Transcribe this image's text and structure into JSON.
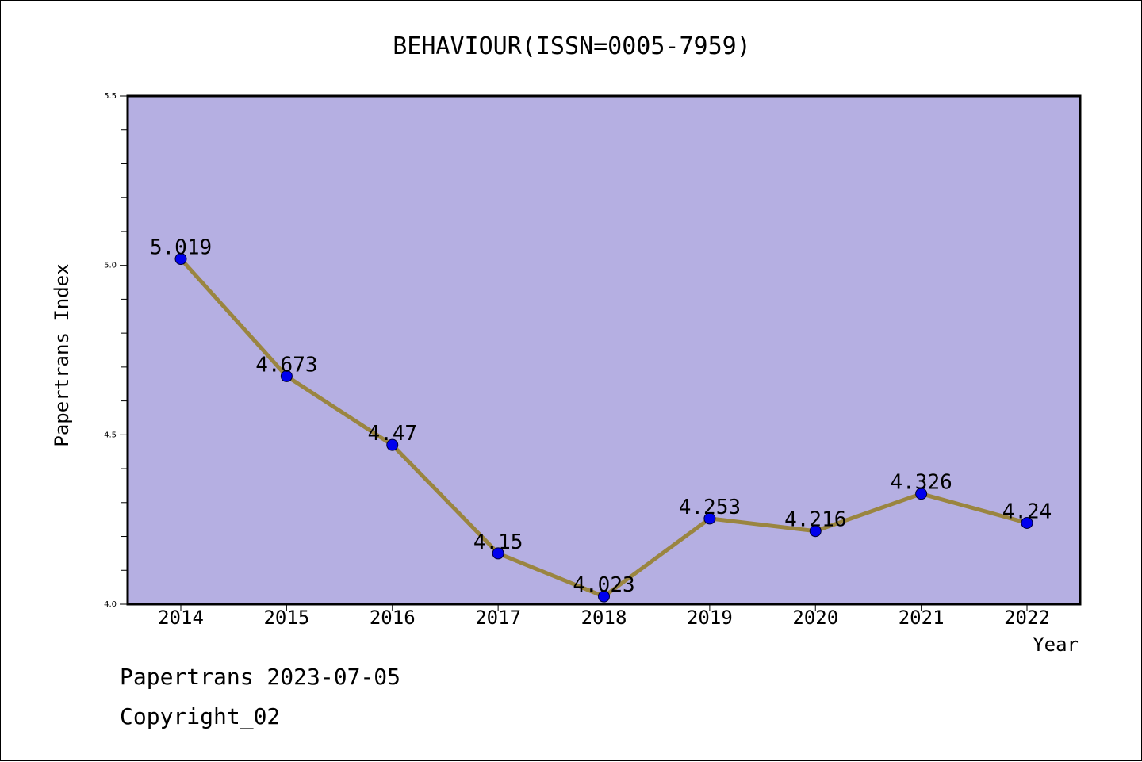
{
  "chart_data": {
    "type": "line",
    "title": "BEHAVIOUR(ISSN=0005-7959)",
    "xlabel": "Year",
    "ylabel": "Papertrans Index",
    "categories": [
      "2014",
      "2015",
      "2016",
      "2017",
      "2018",
      "2019",
      "2020",
      "2021",
      "2022"
    ],
    "series": [
      {
        "values": [
          5.019,
          4.673,
          4.47,
          4.15,
          4.023,
          4.253,
          4.216,
          4.326,
          4.24
        ],
        "labels": [
          "5.019",
          "4.673",
          "4.47",
          "4.15",
          "4.023",
          "4.253",
          "4.216",
          "4.326",
          "4.24"
        ]
      }
    ],
    "ylim": [
      4.0,
      5.5
    ],
    "yticks": [
      "4.0",
      "4.5",
      "5.0",
      "5.5"
    ],
    "grid": false,
    "colors": {
      "plot_background": "#b5afe2",
      "line": "#9a8540",
      "marker": "#0000ee"
    }
  },
  "footer": {
    "line1": "Papertrans 2023-07-05",
    "line2": "Copyright_02"
  }
}
